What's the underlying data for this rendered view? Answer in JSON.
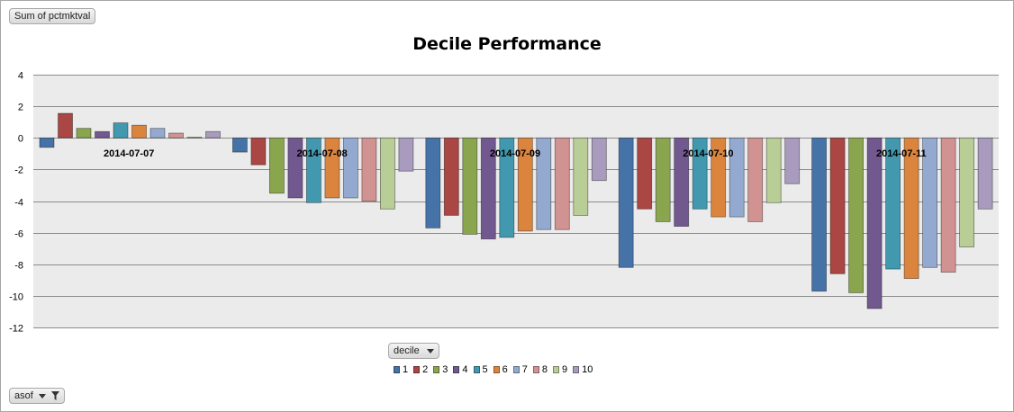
{
  "field_button": {
    "label": "Sum of pctmktval"
  },
  "axis_button": {
    "label": "decile"
  },
  "filter_button": {
    "label": "asof"
  },
  "chart_data": {
    "type": "bar",
    "title": "Decile Performance",
    "xlabel": "",
    "ylabel": "",
    "ylim": [
      -12,
      4
    ],
    "yticks": [
      4,
      2,
      0,
      -2,
      -4,
      -6,
      -8,
      -10,
      -12
    ],
    "grid": true,
    "legend_position": "bottom",
    "categories": [
      "2014-07-07",
      "2014-07-08",
      "2014-07-09",
      "2014-07-10",
      "2014-07-11"
    ],
    "series": [
      {
        "name": "1",
        "color": "#4572a7",
        "values": [
          -0.6,
          -0.9,
          -5.7,
          -8.2,
          -9.7
        ]
      },
      {
        "name": "2",
        "color": "#aa4643",
        "values": [
          1.55,
          -1.7,
          -4.9,
          -4.5,
          -8.6
        ]
      },
      {
        "name": "3",
        "color": "#89a54e",
        "values": [
          0.6,
          -3.5,
          -6.1,
          -5.3,
          -9.8
        ]
      },
      {
        "name": "4",
        "color": "#71588f",
        "values": [
          0.4,
          -3.8,
          -6.4,
          -5.6,
          -10.8
        ]
      },
      {
        "name": "5",
        "color": "#4198af",
        "values": [
          0.95,
          -4.1,
          -6.3,
          -4.5,
          -8.3
        ]
      },
      {
        "name": "6",
        "color": "#db843d",
        "values": [
          0.8,
          -3.8,
          -5.9,
          -5.0,
          -8.9
        ]
      },
      {
        "name": "7",
        "color": "#93a9cf",
        "values": [
          0.6,
          -3.8,
          -5.8,
          -5.0,
          -8.2
        ]
      },
      {
        "name": "8",
        "color": "#d19392",
        "values": [
          0.3,
          -4.0,
          -5.8,
          -5.3,
          -8.5
        ]
      },
      {
        "name": "9",
        "color": "#b9cd96",
        "values": [
          0.05,
          -4.5,
          -4.9,
          -4.1,
          -6.9
        ]
      },
      {
        "name": "10",
        "color": "#a99bbd",
        "values": [
          0.4,
          -2.1,
          -2.7,
          -2.9,
          -4.5
        ]
      }
    ]
  }
}
